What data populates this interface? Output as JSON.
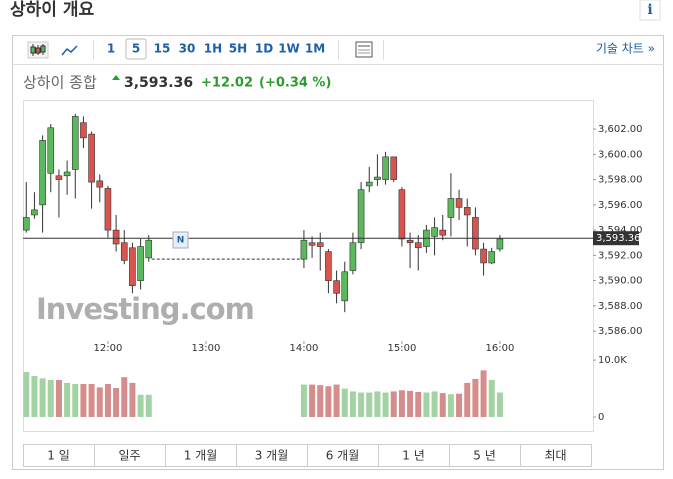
{
  "header": {
    "title": "상하이 개요",
    "info": "i"
  },
  "toolbar": {
    "intervals": [
      "1",
      "5",
      "15",
      "30",
      "1H",
      "5H",
      "1D",
      "1W",
      "1M"
    ],
    "selected": "5",
    "technical": "기술 차트 »"
  },
  "quote": {
    "name": "상하이 종합",
    "price": "3,593.36",
    "change": "+12.02",
    "percent": "(+0.34 %)"
  },
  "watermark": "Investing.com",
  "tabs": [
    "1 일",
    "일주",
    "1 개월",
    "3 개월",
    "6 개월",
    "1 년",
    "5 년",
    "최대"
  ],
  "chart_data": {
    "type": "candlestick",
    "up_color": "#5cb85c",
    "down_color": "#d9534f",
    "up_volume_color": "#a3d3a3",
    "down_volume_color": "#d58c8c",
    "x": [
      670,
      675,
      680,
      685,
      690,
      695,
      700,
      705,
      710,
      715,
      720,
      725,
      730,
      735,
      740,
      745,
      840,
      845,
      850,
      855,
      860,
      865,
      870,
      875,
      880,
      885,
      890,
      895,
      900,
      905,
      910,
      915,
      920,
      925,
      930,
      935,
      940,
      945,
      950,
      955,
      960
    ],
    "open": [
      3594.0,
      3595.2,
      3596.0,
      3598.5,
      3598.3,
      3598.3,
      3598.8,
      3602.5,
      3601.6,
      3597.9,
      3597.3,
      3594.0,
      3593.0,
      3592.6,
      3590.0,
      3591.8,
      3591.7,
      3593.0,
      3593.0,
      3592.3,
      3590.0,
      3588.4,
      3590.8,
      3593.0,
      3597.5,
      3598.0,
      3598.0,
      3599.8,
      3597.2,
      3593.2,
      3593.0,
      3592.7,
      3593.5,
      3594.0,
      3595.0,
      3596.5,
      3595.8,
      3595.0,
      3592.5,
      3591.4,
      3592.5
    ],
    "high": [
      3597.8,
      3597.0,
      3601.5,
      3602.4,
      3598.8,
      3599.5,
      3603.2,
      3603.0,
      3601.8,
      3598.4,
      3597.5,
      3595.2,
      3594.0,
      3593.0,
      3593.3,
      3593.6,
      3594.0,
      3593.5,
      3593.8,
      3592.5,
      3590.8,
      3591.5,
      3593.8,
      3597.8,
      3599.0,
      3600.0,
      3600.2,
      3599.8,
      3597.4,
      3593.8,
      3593.6,
      3594.4,
      3595.0,
      3595.2,
      3598.5,
      3597.2,
      3596.5,
      3595.8,
      3593.0,
      3592.6,
      3593.6
    ],
    "low": [
      3593.8,
      3594.9,
      3593.8,
      3597.0,
      3595.0,
      3596.8,
      3596.5,
      3600.5,
      3595.7,
      3596.2,
      3593.4,
      3592.3,
      3591.3,
      3589.0,
      3589.3,
      3591.5,
      3591.0,
      3591.8,
      3590.8,
      3589.0,
      3588.2,
      3587.5,
      3590.5,
      3592.5,
      3597.0,
      3597.5,
      3597.6,
      3597.8,
      3592.7,
      3591.0,
      3590.8,
      3592.2,
      3592.0,
      3593.2,
      3593.5,
      3594.8,
      3592.7,
      3592.0,
      3590.4,
      3591.3,
      3592.3
    ],
    "close": [
      3595.0,
      3595.6,
      3601.1,
      3602.1,
      3598.0,
      3598.6,
      3603.0,
      3601.3,
      3597.8,
      3597.4,
      3594.0,
      3592.9,
      3591.6,
      3589.6,
      3592.7,
      3593.2,
      3593.2,
      3592.8,
      3592.7,
      3590.0,
      3589.0,
      3590.7,
      3593.0,
      3597.2,
      3597.8,
      3598.2,
      3599.8,
      3598.0,
      3593.3,
      3593.0,
      3592.6,
      3594.0,
      3594.2,
      3593.6,
      3596.5,
      3595.8,
      3595.2,
      3592.5,
      3591.4,
      3592.3,
      3593.3
    ],
    "volume": [
      7900,
      7200,
      6800,
      6500,
      6500,
      6000,
      5800,
      5800,
      5800,
      5200,
      5800,
      5100,
      7000,
      6000,
      3900,
      3900,
      5700,
      5700,
      5600,
      5400,
      5700,
      5000,
      4500,
      4300,
      4300,
      4500,
      4300,
      4500,
      4700,
      4600,
      4400,
      4300,
      4500,
      4200,
      4000,
      4100,
      6000,
      6700,
      8200,
      6500,
      4300
    ],
    "last_price": {
      "value": 3593.36,
      "label": "3,593.36"
    },
    "xlim": [
      668,
      1017
    ],
    "xticks": [
      {
        "value": 720,
        "label": "12:00"
      },
      {
        "value": 780,
        "label": "13:00"
      },
      {
        "value": 840,
        "label": "14:00"
      },
      {
        "value": 900,
        "label": "15:00"
      },
      {
        "value": 960,
        "label": "16:00"
      }
    ],
    "ylim": [
      3585.3,
      3604.3
    ],
    "yticks": [
      {
        "value": 3586,
        "label": "3,586.00"
      },
      {
        "value": 3588,
        "label": "3,588.00"
      },
      {
        "value": 3590,
        "label": "3,590.00"
      },
      {
        "value": 3592,
        "label": "3,592.00"
      },
      {
        "value": 3594,
        "label": "3,594.00"
      },
      {
        "value": 3596,
        "label": "3,596.00"
      },
      {
        "value": 3598,
        "label": "3,598.00"
      },
      {
        "value": 3600,
        "label": "3,600.00"
      },
      {
        "value": 3602,
        "label": "3,602.00"
      }
    ],
    "volume_lim": [
      0,
      10900
    ],
    "volume_ticks": [
      {
        "value": 10000,
        "label": "10.0K"
      },
      0
    ]
  }
}
